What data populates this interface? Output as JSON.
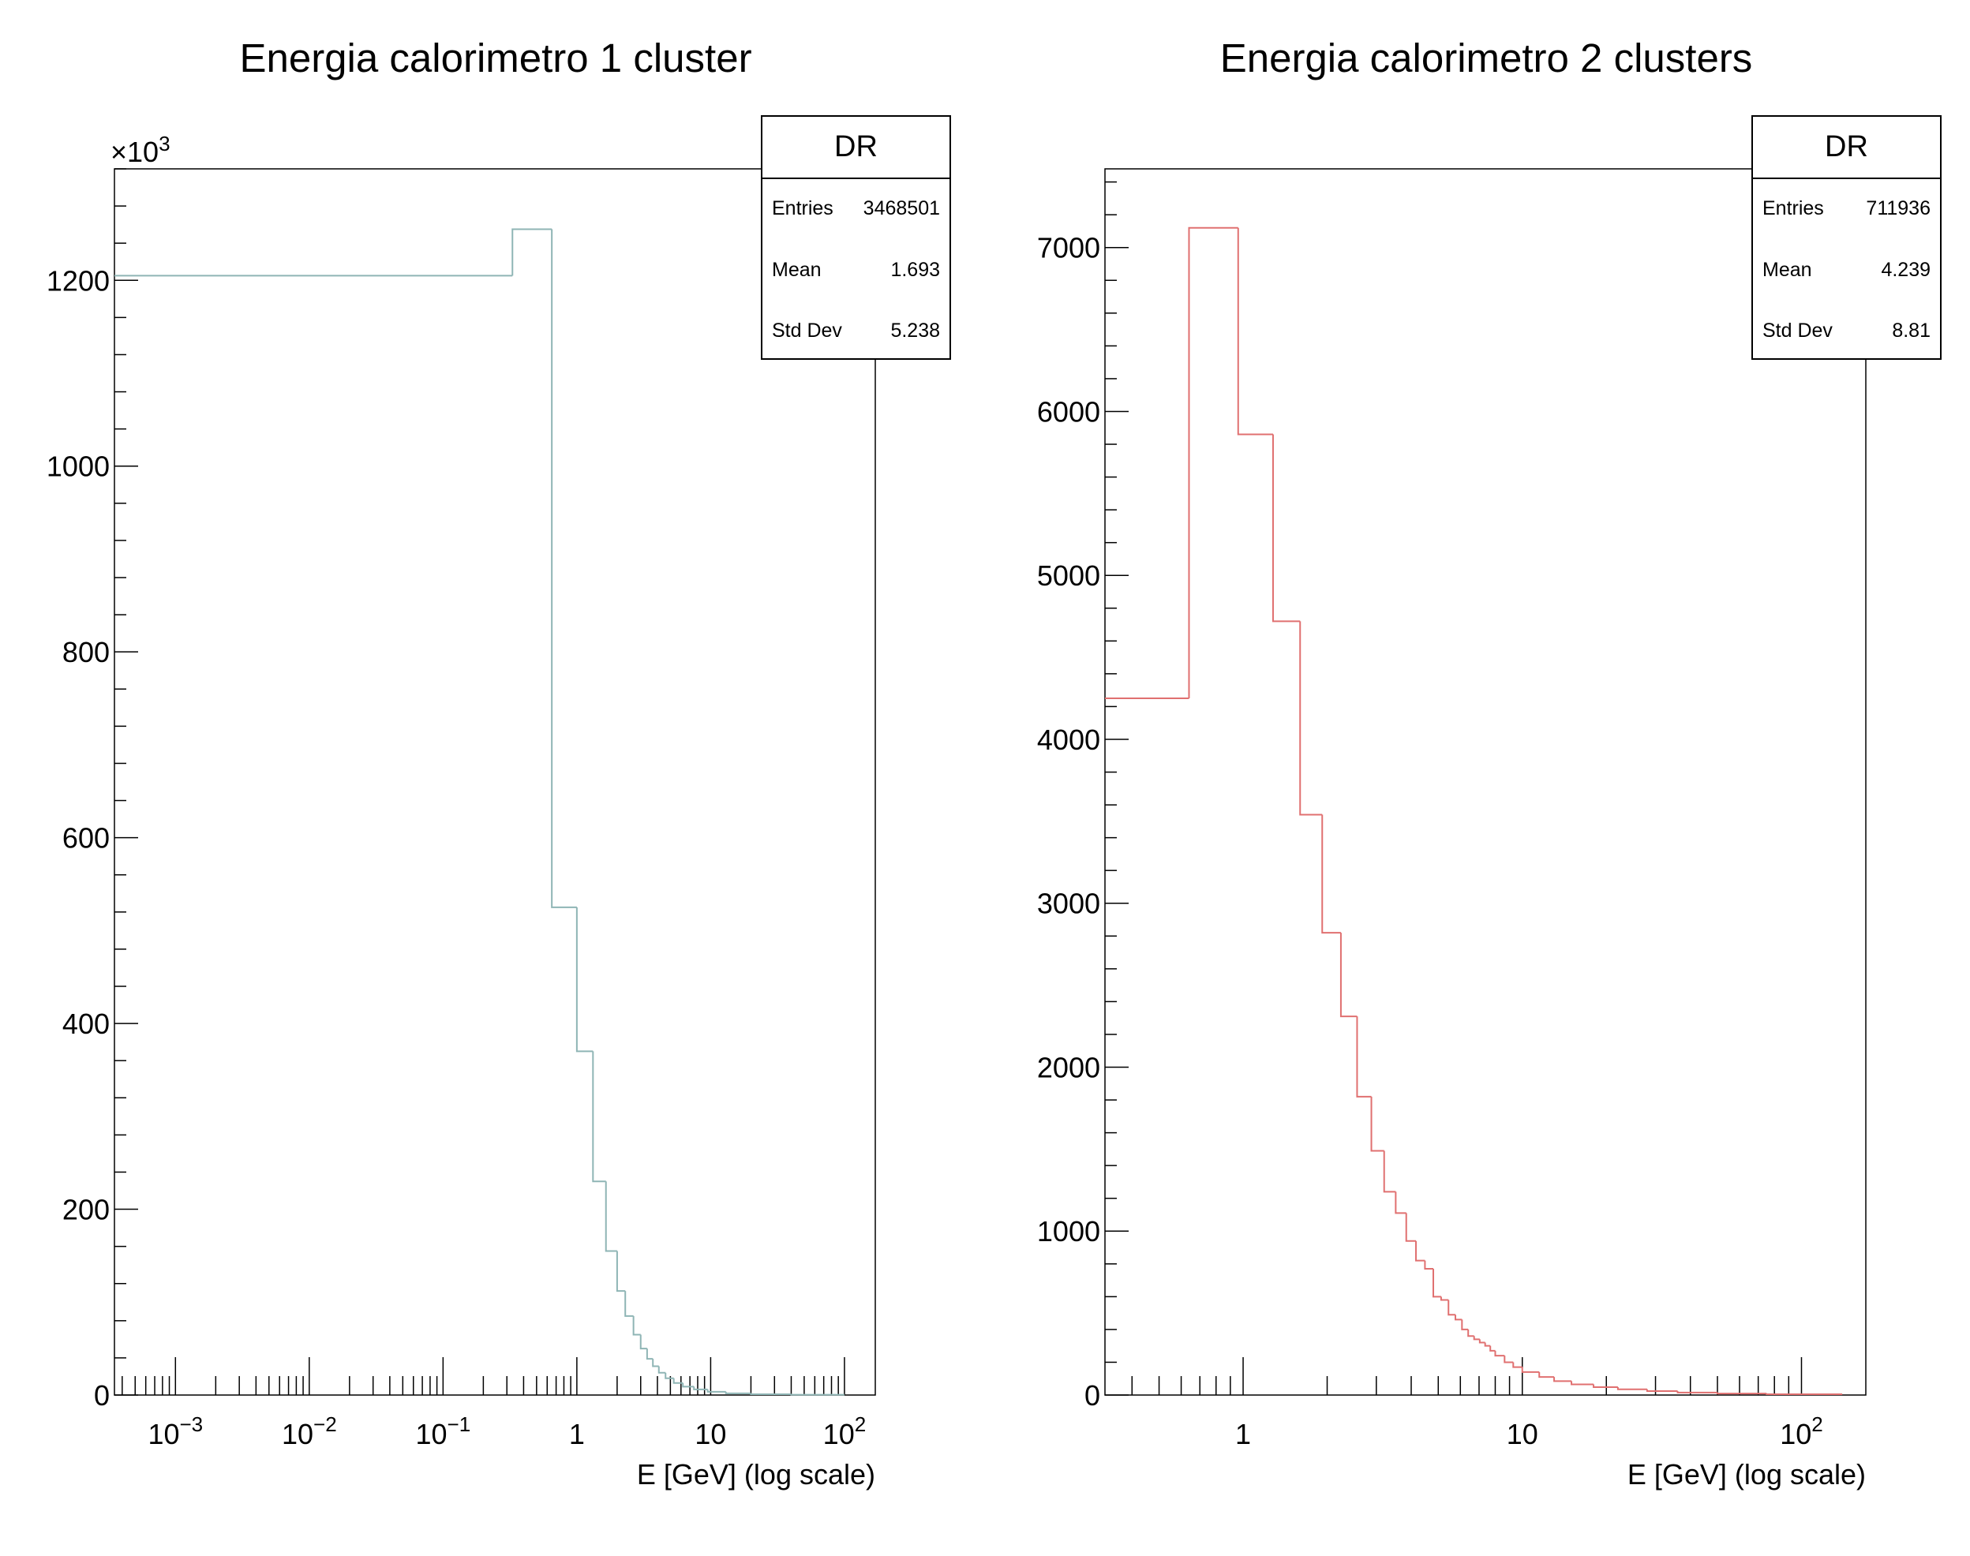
{
  "chart_data": [
    {
      "type": "histogram",
      "title": "Energia calorimetro 1 cluster",
      "xlabel": "E [GeV] (log scale)",
      "ylabel": "",
      "x_scale": "log",
      "xlim": [
        0.00035,
        170
      ],
      "ylim": [
        0,
        1320000
      ],
      "y_multiplier_label": "×10³",
      "x_tick_labels": [
        "10⁻³",
        "10⁻²",
        "10⁻¹",
        "1",
        "10",
        "10²"
      ],
      "y_tick_labels": [
        "0",
        "200",
        "400",
        "600",
        "800",
        "1000",
        "1200"
      ],
      "line_color": "#8fb5b5",
      "bins": [
        {
          "x0": 0.00035,
          "x1": 0.33,
          "y": 1205000
        },
        {
          "x0": 0.33,
          "x1": 0.65,
          "y": 1255000
        },
        {
          "x0": 0.65,
          "x1": 1.0,
          "y": 525000
        },
        {
          "x0": 1.0,
          "x1": 1.32,
          "y": 370000
        },
        {
          "x0": 1.32,
          "x1": 1.65,
          "y": 230000
        },
        {
          "x0": 1.65,
          "x1": 2.0,
          "y": 155000
        },
        {
          "x0": 2.0,
          "x1": 2.3,
          "y": 112000
        },
        {
          "x0": 2.3,
          "x1": 2.65,
          "y": 85000
        },
        {
          "x0": 2.65,
          "x1": 3.0,
          "y": 65000
        },
        {
          "x0": 3.0,
          "x1": 3.35,
          "y": 50000
        },
        {
          "x0": 3.35,
          "x1": 3.7,
          "y": 39000
        },
        {
          "x0": 3.7,
          "x1": 4.1,
          "y": 31000
        },
        {
          "x0": 4.1,
          "x1": 4.6,
          "y": 24000
        },
        {
          "x0": 4.6,
          "x1": 5.3,
          "y": 18000
        },
        {
          "x0": 5.3,
          "x1": 6.2,
          "y": 13000
        },
        {
          "x0": 6.2,
          "x1": 7.5,
          "y": 9000
        },
        {
          "x0": 7.5,
          "x1": 9.5,
          "y": 6000
        },
        {
          "x0": 9.5,
          "x1": 13,
          "y": 3500
        },
        {
          "x0": 13,
          "x1": 20,
          "y": 1800
        },
        {
          "x0": 20,
          "x1": 40,
          "y": 800
        },
        {
          "x0": 40,
          "x1": 100,
          "y": 300
        }
      ],
      "stats": {
        "name": "DR",
        "entries": "3468501",
        "mean": "1.693",
        "std_dev": "5.238"
      }
    },
    {
      "type": "histogram",
      "title": "Energia calorimetro 2 clusters",
      "xlabel": "E [GeV] (log scale)",
      "ylabel": "",
      "x_scale": "log",
      "xlim": [
        0.32,
        170
      ],
      "ylim": [
        0,
        7480
      ],
      "x_tick_labels": [
        "1",
        "10",
        "10²"
      ],
      "y_tick_labels": [
        "0",
        "1000",
        "2000",
        "3000",
        "4000",
        "5000",
        "6000",
        "7000"
      ],
      "line_color": "#e07070",
      "bins": [
        {
          "x0": 0.32,
          "x1": 0.64,
          "y": 4250
        },
        {
          "x0": 0.64,
          "x1": 0.96,
          "y": 7120
        },
        {
          "x0": 0.96,
          "x1": 1.28,
          "y": 5860
        },
        {
          "x0": 1.28,
          "x1": 1.6,
          "y": 4720
        },
        {
          "x0": 1.6,
          "x1": 1.92,
          "y": 3540
        },
        {
          "x0": 1.92,
          "x1": 2.24,
          "y": 2820
        },
        {
          "x0": 2.24,
          "x1": 2.56,
          "y": 2310
        },
        {
          "x0": 2.56,
          "x1": 2.88,
          "y": 1820
        },
        {
          "x0": 2.88,
          "x1": 3.2,
          "y": 1490
        },
        {
          "x0": 3.2,
          "x1": 3.52,
          "y": 1240
        },
        {
          "x0": 3.52,
          "x1": 3.84,
          "y": 1110
        },
        {
          "x0": 3.84,
          "x1": 4.16,
          "y": 940
        },
        {
          "x0": 4.16,
          "x1": 4.48,
          "y": 820
        },
        {
          "x0": 4.48,
          "x1": 4.8,
          "y": 770
        },
        {
          "x0": 4.8,
          "x1": 5.12,
          "y": 600
        },
        {
          "x0": 5.12,
          "x1": 5.44,
          "y": 580
        },
        {
          "x0": 5.44,
          "x1": 5.76,
          "y": 490
        },
        {
          "x0": 5.76,
          "x1": 6.08,
          "y": 460
        },
        {
          "x0": 6.08,
          "x1": 6.4,
          "y": 400
        },
        {
          "x0": 6.4,
          "x1": 6.72,
          "y": 360
        },
        {
          "x0": 6.72,
          "x1": 7.04,
          "y": 340
        },
        {
          "x0": 7.04,
          "x1": 7.36,
          "y": 320
        },
        {
          "x0": 7.36,
          "x1": 7.68,
          "y": 300
        },
        {
          "x0": 7.68,
          "x1": 8.0,
          "y": 270
        },
        {
          "x0": 8.0,
          "x1": 8.64,
          "y": 240
        },
        {
          "x0": 8.64,
          "x1": 9.28,
          "y": 200
        },
        {
          "x0": 9.28,
          "x1": 10.0,
          "y": 170
        },
        {
          "x0": 10.0,
          "x1": 11.5,
          "y": 140
        },
        {
          "x0": 11.5,
          "x1": 13.0,
          "y": 110
        },
        {
          "x0": 13.0,
          "x1": 15.0,
          "y": 85
        },
        {
          "x0": 15.0,
          "x1": 18.0,
          "y": 65
        },
        {
          "x0": 18.0,
          "x1": 22.0,
          "y": 48
        },
        {
          "x0": 22.0,
          "x1": 28.0,
          "y": 35
        },
        {
          "x0": 28.0,
          "x1": 36.0,
          "y": 24
        },
        {
          "x0": 36.0,
          "x1": 50.0,
          "y": 15
        },
        {
          "x0": 50.0,
          "x1": 75.0,
          "y": 9
        },
        {
          "x0": 75.0,
          "x1": 140.0,
          "y": 5
        }
      ],
      "stats": {
        "name": "DR",
        "entries": "711936",
        "mean": "4.239",
        "std_dev": "8.81"
      }
    }
  ],
  "stats_labels": {
    "entries": "Entries",
    "mean": "Mean",
    "std_dev": "Std Dev"
  }
}
